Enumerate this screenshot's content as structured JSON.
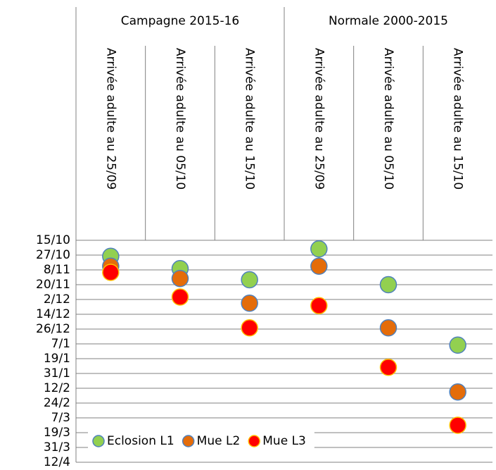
{
  "chart_data": {
    "type": "scatter",
    "groups": [
      "Campagne 2015-16",
      "Normale 2000-2015"
    ],
    "categories": [
      "Arrivée adulte au 25/09",
      "Arrivée adulte au 05/10",
      "Arrivée adulte au 15/10",
      "Arrivée adulte au 25/09",
      "Arrivée adulte au 05/10",
      "Arrivée adulte au 15/10"
    ],
    "series": [
      {
        "name": "Eclosion L1",
        "color": "#92d050",
        "edgecolor": "#4f81bd",
        "values": [
          13,
          23,
          32,
          7,
          36,
          85
        ]
      },
      {
        "name": "Mue L2",
        "color": "#e46c0a",
        "edgecolor": "#4f81bd",
        "values": [
          21,
          31,
          51,
          21,
          71,
          123
        ]
      },
      {
        "name": "Mue L3",
        "color": "#ff0000",
        "edgecolor": "#ffc000",
        "values": [
          26,
          46,
          71,
          53,
          103,
          150
        ]
      }
    ],
    "ylim": [
      0,
      180
    ],
    "y_reversed": true,
    "yticks": [
      {
        "value": 0,
        "label": "15/10"
      },
      {
        "value": 12,
        "label": "27/10"
      },
      {
        "value": 24,
        "label": "8/11"
      },
      {
        "value": 36,
        "label": "20/11"
      },
      {
        "value": 48,
        "label": "2/12"
      },
      {
        "value": 60,
        "label": "14/12"
      },
      {
        "value": 72,
        "label": "26/12"
      },
      {
        "value": 84,
        "label": "7/1"
      },
      {
        "value": 96,
        "label": "19/1"
      },
      {
        "value": 108,
        "label": "31/1"
      },
      {
        "value": 120,
        "label": "12/2"
      },
      {
        "value": 132,
        "label": "24/2"
      },
      {
        "value": 144,
        "label": "7/3"
      },
      {
        "value": 156,
        "label": "19/3"
      },
      {
        "value": 168,
        "label": "31/3"
      },
      {
        "value": 180,
        "label": "12/4"
      }
    ],
    "grid": true,
    "legend": "bottom-left"
  }
}
